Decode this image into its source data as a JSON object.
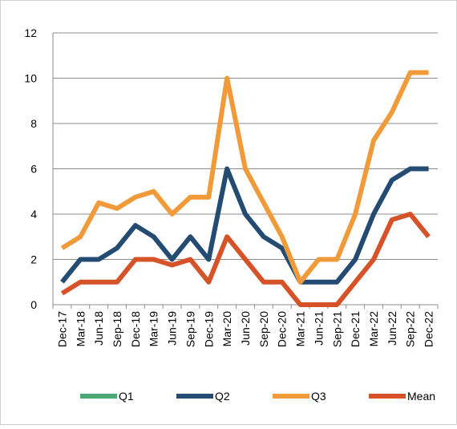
{
  "chart_data": {
    "type": "line",
    "categories": [
      "Dec-17",
      "Mar-18",
      "Jun-18",
      "Sep-18",
      "Dec-18",
      "Mar-19",
      "Jun-19",
      "Sep-19",
      "Dec-19",
      "Mar-20",
      "Jun-20",
      "Sep-20",
      "Dec-20",
      "Mar-21",
      "Jun-21",
      "Sep-21",
      "Dec-21",
      "Mar-22",
      "Jun-22",
      "Sep-22",
      "Dec-22"
    ],
    "series": [
      {
        "name": "Q1",
        "color": "#4aa874",
        "values": [
          null,
          null,
          null,
          null,
          null,
          null,
          null,
          null,
          null,
          null,
          null,
          null,
          null,
          null,
          null,
          null,
          null,
          null,
          null,
          null,
          null
        ]
      },
      {
        "name": "Q2",
        "color": "#244c72",
        "values": [
          1,
          2,
          2,
          2.5,
          3.5,
          3,
          2,
          3,
          2,
          6,
          4,
          3,
          2.5,
          1,
          1,
          1,
          2,
          4,
          5.5,
          6,
          6
        ]
      },
      {
        "name": "Q3",
        "color": "#f09a3a",
        "values": [
          2.5,
          3,
          4.5,
          4.25,
          4.75,
          5,
          4,
          4.75,
          4.75,
          10,
          6,
          4.5,
          3,
          1,
          2,
          2,
          4,
          7.25,
          8.5,
          10.25,
          10.25
        ]
      },
      {
        "name": "Mean",
        "color": "#d6532a",
        "values": [
          0.5,
          1,
          1,
          1,
          2,
          2,
          1.75,
          2,
          1,
          3,
          2,
          1,
          1,
          0,
          0,
          0,
          1,
          2,
          3.75,
          4,
          3
        ]
      }
    ],
    "ylim": [
      0,
      12
    ],
    "yticks": [
      0,
      2,
      4,
      6,
      8,
      10,
      12
    ],
    "grid": true,
    "legend": "bottom"
  }
}
